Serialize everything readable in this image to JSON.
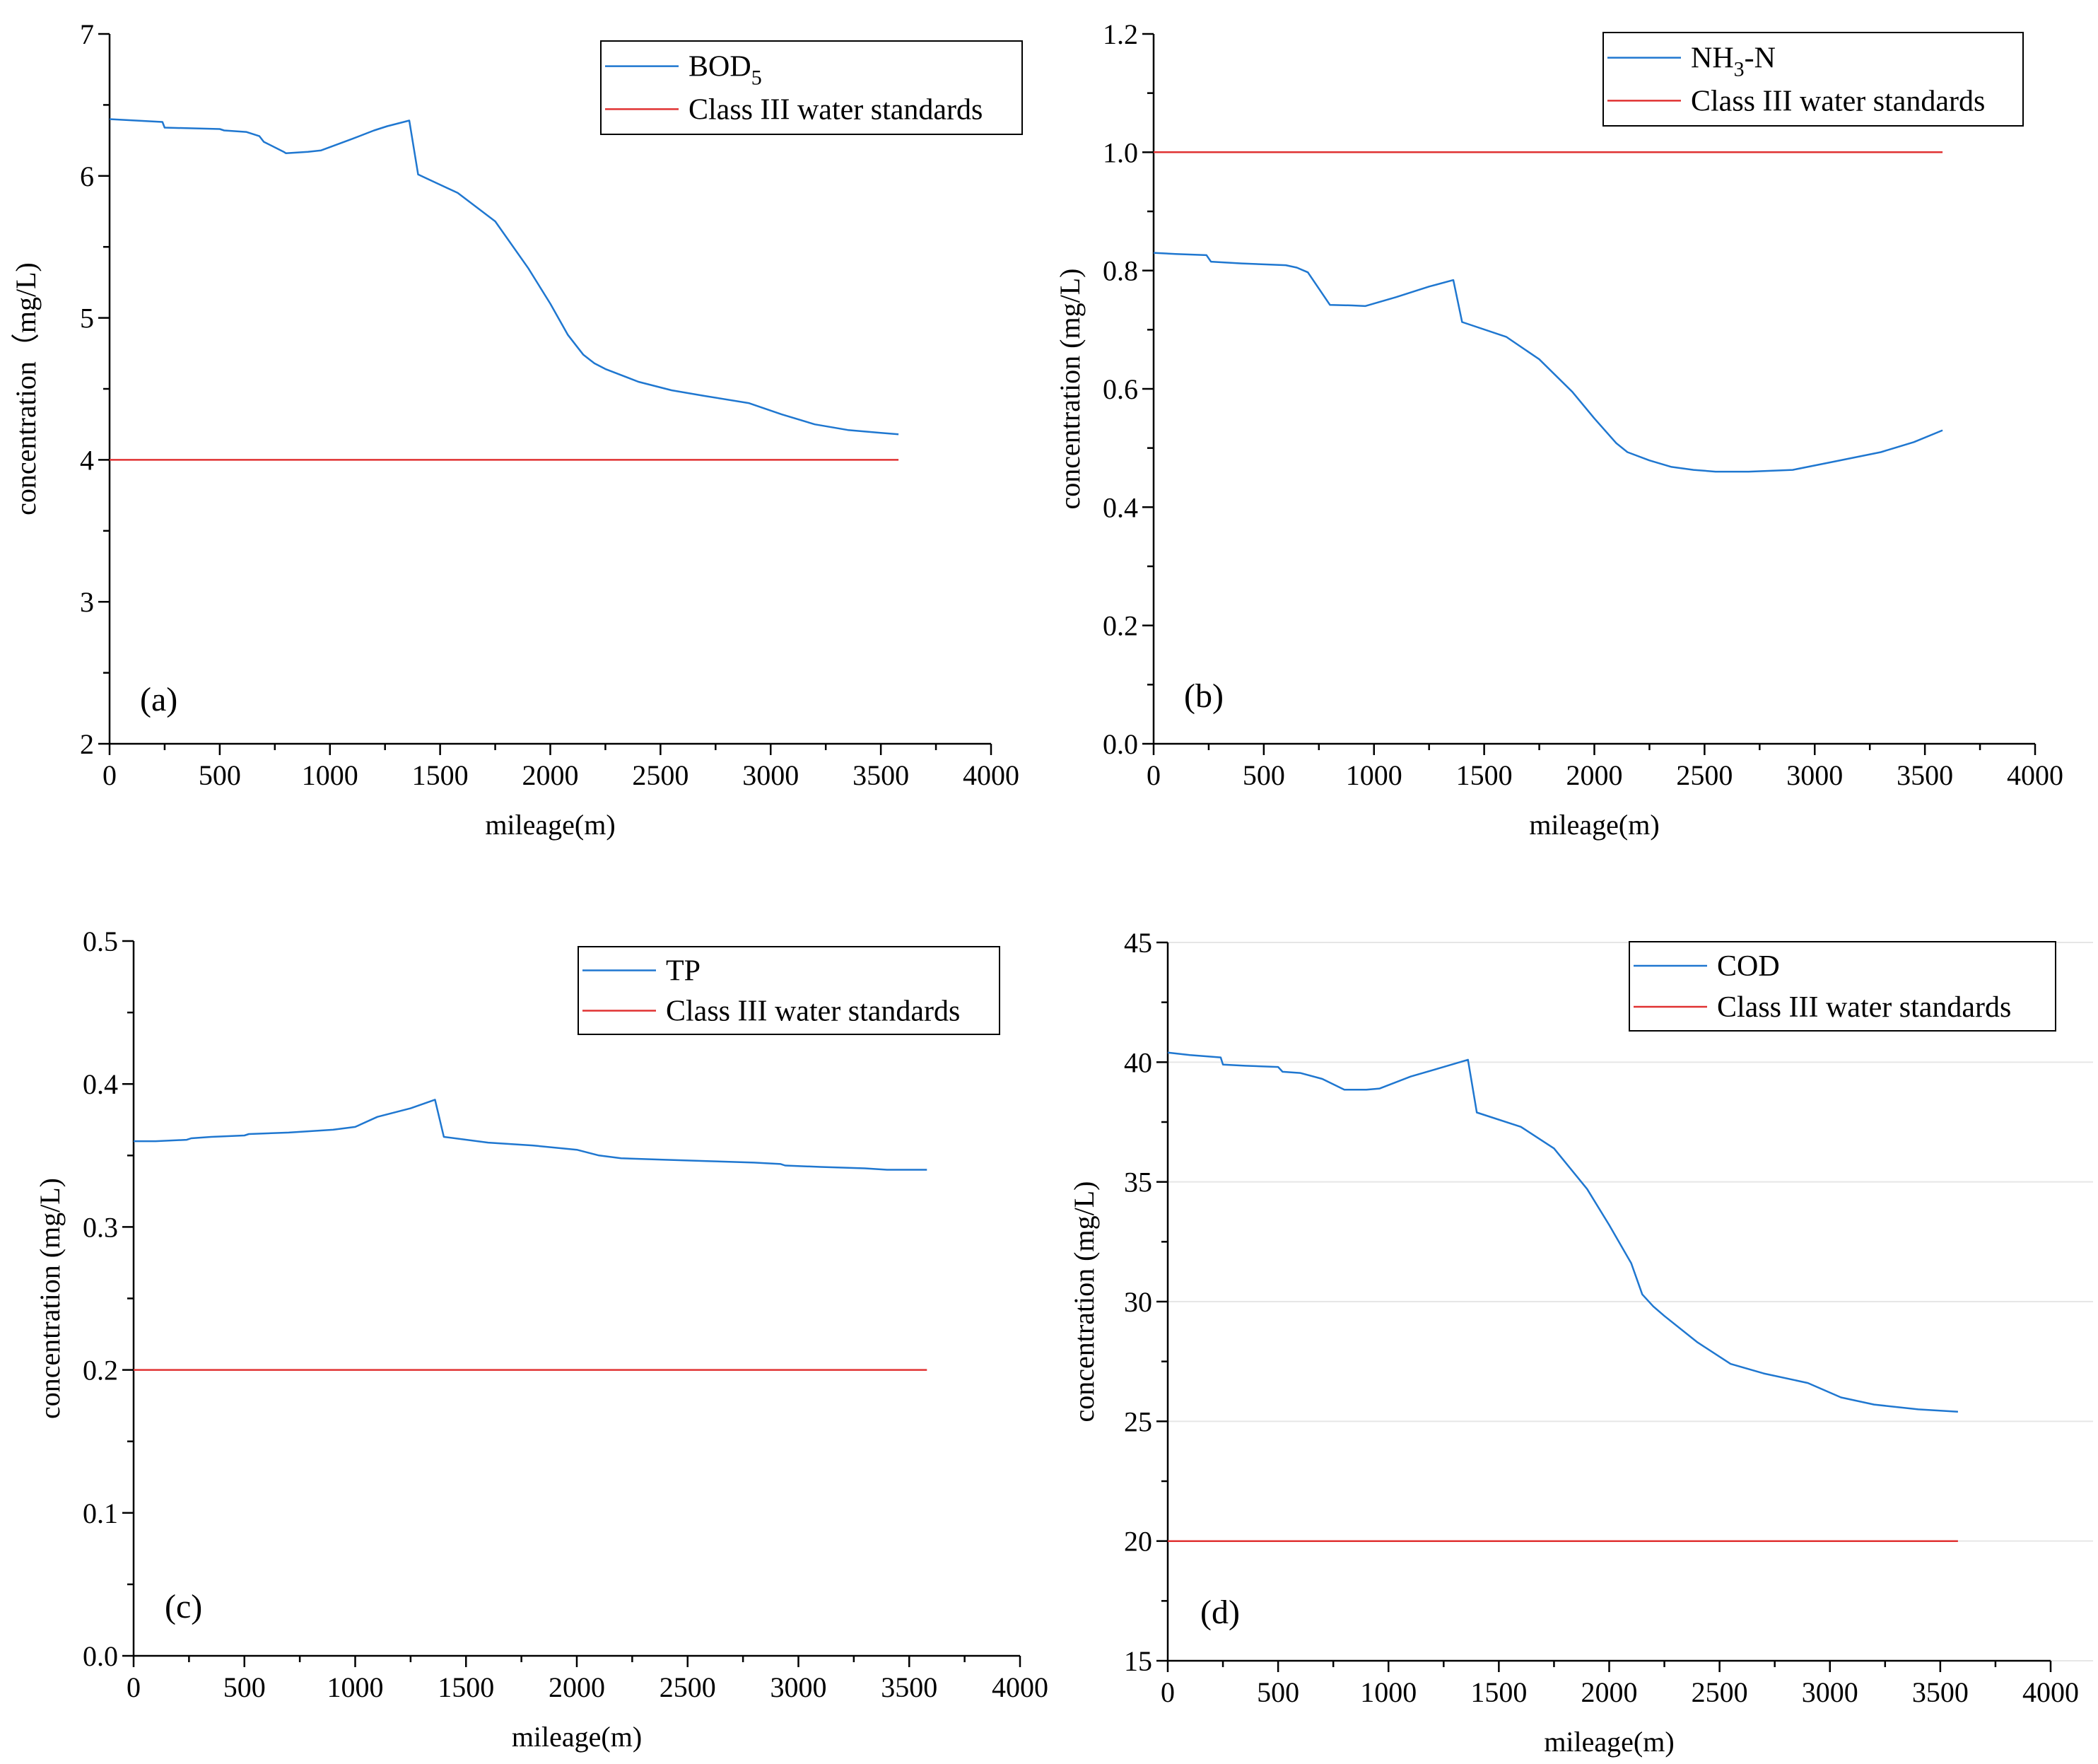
{
  "chart_data": [
    {
      "type": "line",
      "panel_label": "(a)",
      "xlabel": "mileage(m)",
      "ylabel": "concentration（mg/L)",
      "xlim": [
        0,
        4000
      ],
      "ylim": [
        2,
        7
      ],
      "xticks": [
        "0",
        "500",
        "1000",
        "1500",
        "2000",
        "2500",
        "3000",
        "3500",
        "4000"
      ],
      "yticks": [
        "2",
        "3",
        "4",
        "5",
        "6",
        "7"
      ],
      "legend_position": "top-right",
      "series": [
        {
          "name": "BOD",
          "name_sub": "5",
          "color": "#1f77d0",
          "x": [
            0,
            240,
            250,
            500,
            520,
            620,
            680,
            700,
            790,
            800,
            900,
            960,
            1100,
            1200,
            1260,
            1360,
            1400,
            1580,
            1750,
            1900,
            2000,
            2080,
            2120,
            2150,
            2200,
            2250,
            2400,
            2550,
            2700,
            2900,
            3050,
            3200,
            3350,
            3500,
            3580
          ],
          "y": [
            6.4,
            6.38,
            6.34,
            6.33,
            6.32,
            6.31,
            6.28,
            6.24,
            6.17,
            6.16,
            6.17,
            6.18,
            6.26,
            6.32,
            6.35,
            6.39,
            6.01,
            5.88,
            5.68,
            5.35,
            5.1,
            4.88,
            4.8,
            4.74,
            4.68,
            4.64,
            4.55,
            4.49,
            4.45,
            4.4,
            4.32,
            4.25,
            4.21,
            4.19,
            4.18
          ]
        },
        {
          "name": "Class III water standards",
          "color": "#e03232",
          "x": [
            0,
            3580
          ],
          "y": [
            4,
            4
          ]
        }
      ]
    },
    {
      "type": "line",
      "panel_label": "(b)",
      "xlabel": "mileage(m)",
      "ylabel": "concentration (mg/L)",
      "xlim": [
        0,
        4000
      ],
      "ylim": [
        0.0,
        1.2
      ],
      "xticks": [
        "0",
        "500",
        "1000",
        "1500",
        "2000",
        "2500",
        "3000",
        "3500",
        "4000"
      ],
      "yticks": [
        "0.0",
        "0.2",
        "0.4",
        "0.6",
        "0.8",
        "1.0",
        "1.2"
      ],
      "legend_position": "top-right",
      "series": [
        {
          "name": "NH",
          "name_sub": "3",
          "name_suffix": "-N",
          "color": "#1f77d0",
          "x": [
            0,
            100,
            240,
            260,
            400,
            600,
            650,
            700,
            800,
            900,
            960,
            1100,
            1250,
            1360,
            1400,
            1600,
            1750,
            1900,
            2000,
            2100,
            2150,
            2250,
            2350,
            2450,
            2550,
            2700,
            2900,
            3100,
            3300,
            3450,
            3580
          ],
          "y": [
            0.83,
            0.828,
            0.826,
            0.815,
            0.812,
            0.809,
            0.805,
            0.797,
            0.742,
            0.741,
            0.74,
            0.755,
            0.773,
            0.784,
            0.713,
            0.688,
            0.65,
            0.595,
            0.55,
            0.508,
            0.493,
            0.479,
            0.468,
            0.463,
            0.46,
            0.46,
            0.463,
            0.478,
            0.493,
            0.51,
            0.53
          ]
        },
        {
          "name": "Class III water standards",
          "color": "#e03232",
          "x": [
            0,
            3580
          ],
          "y": [
            1.0,
            1.0
          ]
        }
      ]
    },
    {
      "type": "line",
      "panel_label": "(c)",
      "xlabel": "mileage(m)",
      "ylabel": "concentration (mg/L)",
      "xlim": [
        0,
        4000
      ],
      "ylim": [
        0.0,
        0.5
      ],
      "xticks": [
        "0",
        "500",
        "1000",
        "1500",
        "2000",
        "2500",
        "3000",
        "3500",
        "4000"
      ],
      "yticks": [
        "0.0",
        "0.1",
        "0.2",
        "0.3",
        "0.4",
        "0.5"
      ],
      "legend_position": "top-right",
      "series": [
        {
          "name": "TP",
          "color": "#1f77d0",
          "x": [
            0,
            100,
            240,
            260,
            350,
            500,
            520,
            700,
            800,
            900,
            1000,
            1100,
            1250,
            1360,
            1400,
            1600,
            1800,
            2000,
            2100,
            2200,
            2400,
            2600,
            2800,
            2920,
            2940,
            3100,
            3300,
            3400,
            3580
          ],
          "y": [
            0.36,
            0.36,
            0.361,
            0.362,
            0.363,
            0.364,
            0.365,
            0.366,
            0.367,
            0.368,
            0.37,
            0.377,
            0.383,
            0.389,
            0.363,
            0.359,
            0.357,
            0.354,
            0.35,
            0.348,
            0.347,
            0.346,
            0.345,
            0.344,
            0.343,
            0.342,
            0.341,
            0.34,
            0.34
          ]
        },
        {
          "name": "Class III water standards",
          "color": "#e03232",
          "x": [
            0,
            3580
          ],
          "y": [
            0.2,
            0.2
          ]
        }
      ]
    },
    {
      "type": "line",
      "panel_label": "(d)",
      "xlabel": "mileage(m)",
      "ylabel": "concentration (mg/L)",
      "xlim": [
        0,
        4000
      ],
      "ylim": [
        15,
        45
      ],
      "xticks": [
        "0",
        "500",
        "1000",
        "1500",
        "2000",
        "2500",
        "3000",
        "3500",
        "4000"
      ],
      "yticks": [
        "15",
        "20",
        "25",
        "30",
        "35",
        "40",
        "45"
      ],
      "grid": true,
      "legend_position": "top-right",
      "series": [
        {
          "name": "COD",
          "color": "#1f77d0",
          "x": [
            0,
            100,
            240,
            250,
            350,
            500,
            520,
            600,
            700,
            800,
            900,
            960,
            1100,
            1250,
            1360,
            1400,
            1600,
            1750,
            1900,
            2000,
            2100,
            2150,
            2200,
            2250,
            2400,
            2550,
            2700,
            2900,
            3050,
            3200,
            3400,
            3580
          ],
          "y": [
            40.4,
            40.3,
            40.2,
            39.9,
            39.85,
            39.8,
            39.6,
            39.55,
            39.3,
            38.85,
            38.85,
            38.9,
            39.4,
            39.8,
            40.1,
            37.9,
            37.3,
            36.4,
            34.7,
            33.2,
            31.6,
            30.3,
            29.8,
            29.4,
            28.3,
            27.4,
            27.0,
            26.6,
            26.0,
            25.7,
            25.5,
            25.4
          ]
        },
        {
          "name": "Class III water standards",
          "color": "#e03232",
          "x": [
            0,
            3580
          ],
          "y": [
            20,
            20
          ]
        }
      ]
    }
  ]
}
